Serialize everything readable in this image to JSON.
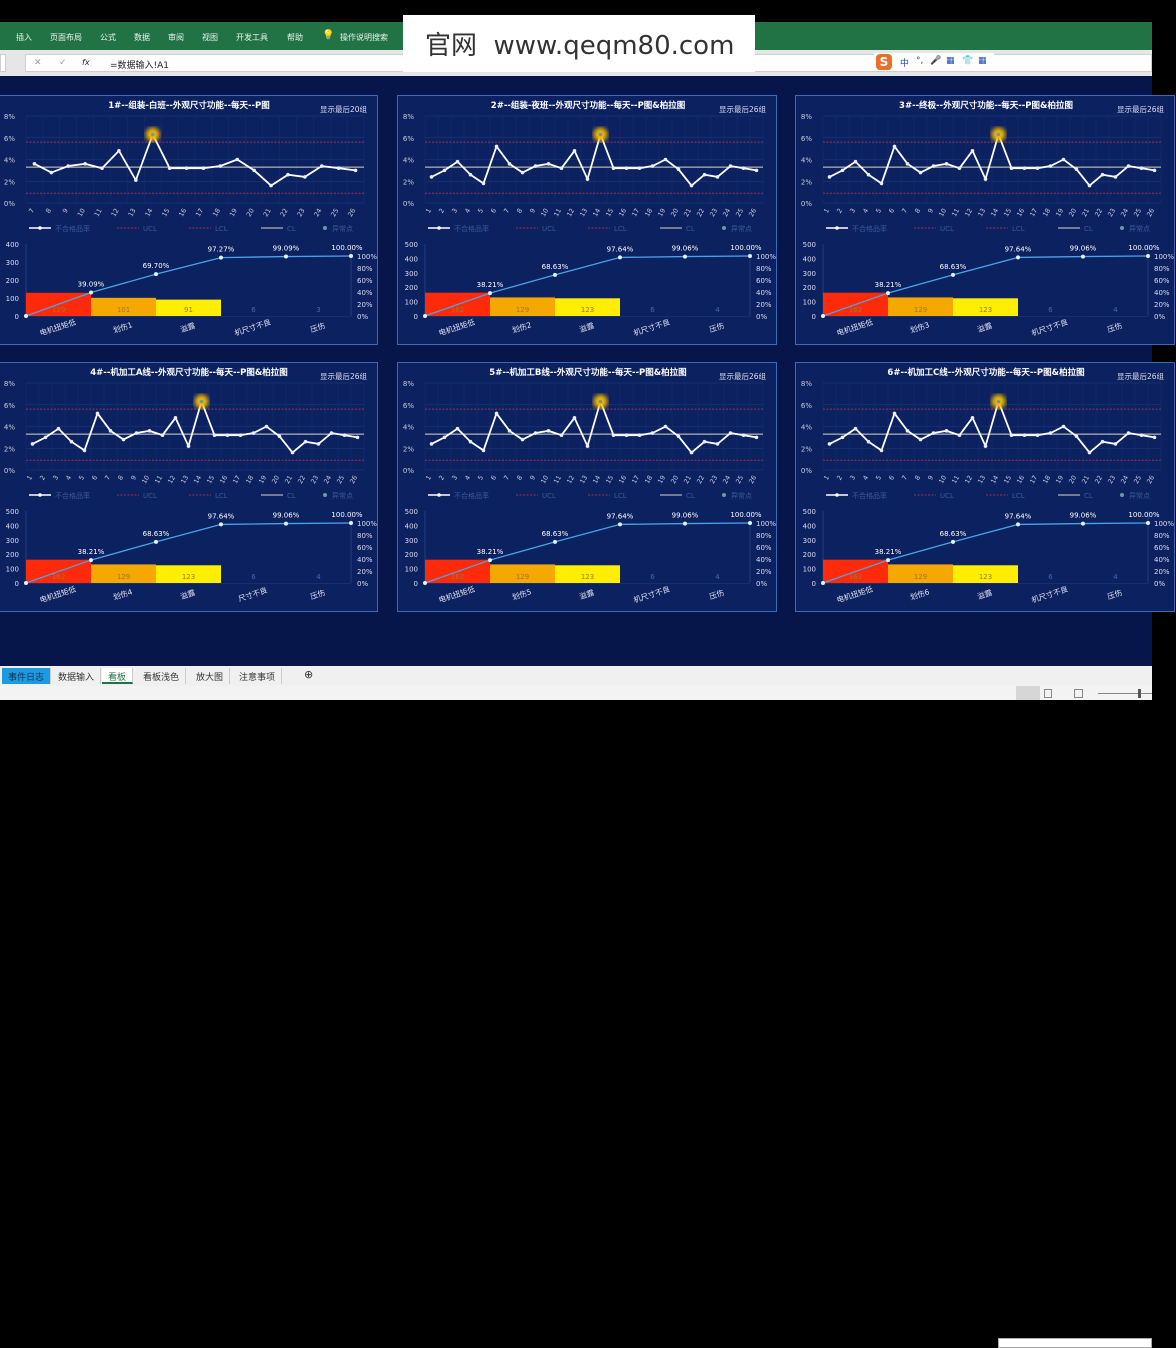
{
  "ribbon": {
    "tabs": [
      "插入",
      "页面布局",
      "公式",
      "数据",
      "审阅",
      "视图",
      "开发工具",
      "帮助"
    ],
    "search": "操作说明搜索"
  },
  "formula_bar": {
    "cancel": "✕",
    "enter": "✓",
    "fx": "fx",
    "formula": "=数据输入!A1"
  },
  "ime": {
    "logo": "S",
    "items": [
      "中",
      "°,",
      "🎤",
      "▦",
      "👕",
      "▦"
    ]
  },
  "watermark": "官网  www.qeqm80.com",
  "colors": {
    "background": "#07164a",
    "panel": "#0c2160",
    "ucl": "#a03050",
    "cl": "#d8d8c8",
    "series": "#ffffff",
    "pareto_line": "#4aa3e8",
    "bars": [
      "#ff2a0a",
      "#f5a800",
      "#ffee00",
      "#0c2160",
      "#0c2160"
    ],
    "abnormal": "#f5b800"
  },
  "legend": [
    "不合格品率",
    "UCL",
    "LCL",
    "CL",
    "异常点"
  ],
  "p_axis": [
    "0%",
    "2%",
    "4%",
    "6%",
    "8%"
  ],
  "cum_axis": [
    "0%",
    "20%",
    "40%",
    "60%",
    "80%",
    "100%"
  ],
  "chart_data": [
    {
      "type": "line+pareto",
      "title": "1#--组装-白班--外观尺寸功能--每天--P图",
      "note": "显示最后20组",
      "x": [
        "7",
        "8",
        "9",
        "10",
        "11",
        "12",
        "13",
        "14",
        "15",
        "16",
        "17",
        "18",
        "19",
        "20",
        "21",
        "22",
        "23",
        "24",
        "25",
        "26"
      ],
      "p": [
        3.6,
        2.8,
        3.4,
        3.6,
        3.2,
        4.8,
        2.1,
        6.3,
        3.2,
        3.2,
        3.2,
        3.4,
        4.0,
        3.0,
        1.6,
        2.6,
        2.4,
        3.4,
        3.2,
        3.0
      ],
      "cl": 3.3,
      "ucl": 5.6,
      "lcl": 0.9,
      "abnormal_index": 7,
      "pareto": {
        "categories": [
          "电机扭矩低",
          "划伤1",
          "溢露",
          "机尺寸不良",
          "压伤"
        ],
        "values": [
          129,
          101,
          91,
          6,
          3
        ],
        "value_labels": [
          "129",
          "101",
          "91",
          "6",
          "3"
        ],
        "cumulative": [
          "39.09%",
          "69.70%",
          "97.27%",
          "99.09%",
          "100.00%"
        ],
        "cum_values": [
          39.09,
          69.7,
          97.27,
          99.09,
          100
        ],
        "ymax": 400,
        "yticks": [
          "0",
          "100",
          "200",
          "300",
          "400"
        ]
      }
    },
    {
      "type": "line+pareto",
      "title": "2#--组装-夜班--外观尺寸功能--每天--P图&柏拉图",
      "note": "显示最后26组",
      "x": [
        "1",
        "2",
        "3",
        "4",
        "5",
        "6",
        "7",
        "8",
        "9",
        "10",
        "11",
        "12",
        "13",
        "14",
        "15",
        "16",
        "17",
        "18",
        "19",
        "20",
        "21",
        "22",
        "23",
        "24",
        "25",
        "26"
      ],
      "p": [
        2.4,
        3.0,
        3.8,
        2.6,
        1.8,
        5.2,
        3.6,
        2.8,
        3.4,
        3.6,
        3.2,
        4.8,
        2.2,
        6.3,
        3.2,
        3.2,
        3.2,
        3.4,
        4.0,
        3.1,
        1.6,
        2.6,
        2.4,
        3.4,
        3.2,
        3.0
      ],
      "cl": 3.3,
      "ucl": 5.6,
      "lcl": 0.9,
      "abnormal_index": 13,
      "pareto": {
        "categories": [
          "电机扭矩低",
          "划伤2",
          "溢露",
          "机尺寸不良",
          "压伤"
        ],
        "values": [
          162,
          129,
          123,
          6,
          4
        ],
        "value_labels": [
          "162",
          "129",
          "123",
          "6",
          "4"
        ],
        "cumulative": [
          "38.21%",
          "68.63%",
          "97.64%",
          "99.06%",
          "100.00%"
        ],
        "cum_values": [
          38.21,
          68.63,
          97.64,
          99.06,
          100
        ],
        "ymax": 500,
        "yticks": [
          "0",
          "100",
          "200",
          "300",
          "400",
          "500"
        ]
      }
    },
    {
      "type": "line+pareto",
      "title": "3#--终极--外观尺寸功能--每天--P图&柏拉图",
      "note": "显示最后26组",
      "x": [
        "1",
        "2",
        "3",
        "4",
        "5",
        "6",
        "7",
        "8",
        "9",
        "10",
        "11",
        "12",
        "13",
        "14",
        "15",
        "16",
        "17",
        "18",
        "19",
        "20",
        "21",
        "22",
        "23",
        "24",
        "25",
        "26"
      ],
      "p": [
        2.4,
        3.0,
        3.8,
        2.6,
        1.8,
        5.2,
        3.6,
        2.8,
        3.4,
        3.6,
        3.2,
        4.8,
        2.2,
        6.3,
        3.2,
        3.2,
        3.2,
        3.4,
        4.0,
        3.1,
        1.6,
        2.6,
        2.4,
        3.4,
        3.2,
        3.0
      ],
      "cl": 3.3,
      "ucl": 5.6,
      "lcl": 0.9,
      "abnormal_index": 13,
      "pareto": {
        "categories": [
          "电机扭矩低",
          "划伤3",
          "溢露",
          "机尺寸不良",
          "压伤"
        ],
        "values": [
          162,
          129,
          123,
          6,
          4
        ],
        "value_labels": [
          "162",
          "129",
          "123",
          "6",
          "4"
        ],
        "cumulative": [
          "38.21%",
          "68.63%",
          "97.64%",
          "99.06%",
          "100.00%"
        ],
        "cum_values": [
          38.21,
          68.63,
          97.64,
          99.06,
          100
        ],
        "ymax": 500,
        "yticks": [
          "0",
          "100",
          "200",
          "300",
          "400",
          "500"
        ]
      }
    },
    {
      "type": "line+pareto",
      "title": "4#--机加工A线--外观尺寸功能--每天--P图&柏拉图",
      "note": "显示最后26组",
      "x": [
        "1",
        "2",
        "3",
        "4",
        "5",
        "6",
        "7",
        "8",
        "9",
        "10",
        "11",
        "12",
        "13",
        "14",
        "15",
        "16",
        "17",
        "18",
        "19",
        "20",
        "21",
        "22",
        "23",
        "24",
        "25",
        "26"
      ],
      "p": [
        2.4,
        3.0,
        3.8,
        2.6,
        1.8,
        5.2,
        3.6,
        2.8,
        3.4,
        3.6,
        3.2,
        4.8,
        2.2,
        6.3,
        3.2,
        3.2,
        3.2,
        3.4,
        4.0,
        3.1,
        1.6,
        2.6,
        2.4,
        3.4,
        3.2,
        3.0
      ],
      "cl": 3.3,
      "ucl": 5.6,
      "lcl": 0.9,
      "abnormal_index": 13,
      "pareto": {
        "categories": [
          "电机扭矩低",
          "划伤4",
          "溢露",
          "尺寸不良",
          "压伤"
        ],
        "values": [
          162,
          129,
          123,
          6,
          4
        ],
        "value_labels": [
          "162",
          "129",
          "123",
          "6",
          "4"
        ],
        "cumulative": [
          "38.21%",
          "68.63%",
          "97.64%",
          "99.06%",
          "100.00%"
        ],
        "cum_values": [
          38.21,
          68.63,
          97.64,
          99.06,
          100
        ],
        "ymax": 500,
        "yticks": [
          "0",
          "100",
          "200",
          "300",
          "400",
          "500"
        ]
      }
    },
    {
      "type": "line+pareto",
      "title": "5#--机加工B线--外观尺寸功能--每天--P图&柏拉图",
      "note": "显示最后26组",
      "x": [
        "1",
        "2",
        "3",
        "4",
        "5",
        "6",
        "7",
        "8",
        "9",
        "10",
        "11",
        "12",
        "13",
        "14",
        "15",
        "16",
        "17",
        "18",
        "19",
        "20",
        "21",
        "22",
        "23",
        "24",
        "25",
        "26"
      ],
      "p": [
        2.4,
        3.0,
        3.8,
        2.6,
        1.8,
        5.2,
        3.6,
        2.8,
        3.4,
        3.6,
        3.2,
        4.8,
        2.2,
        6.3,
        3.2,
        3.2,
        3.2,
        3.4,
        4.0,
        3.1,
        1.6,
        2.6,
        2.4,
        3.4,
        3.2,
        3.0
      ],
      "cl": 3.3,
      "ucl": 5.6,
      "lcl": 0.9,
      "abnormal_index": 13,
      "pareto": {
        "categories": [
          "电机扭矩低",
          "划伤5",
          "溢露",
          "机尺寸不良",
          "压伤"
        ],
        "values": [
          162,
          129,
          123,
          6,
          4
        ],
        "value_labels": [
          "162",
          "129",
          "123",
          "6",
          "4"
        ],
        "cumulative": [
          "38.21%",
          "68.63%",
          "97.64%",
          "99.06%",
          "100.00%"
        ],
        "cum_values": [
          38.21,
          68.63,
          97.64,
          99.06,
          100
        ],
        "ymax": 500,
        "yticks": [
          "0",
          "100",
          "200",
          "300",
          "400",
          "500"
        ]
      }
    },
    {
      "type": "line+pareto",
      "title": "6#--机加工C线--外观尺寸功能--每天--P图&柏拉图",
      "note": "显示最后26组",
      "x": [
        "1",
        "2",
        "3",
        "4",
        "5",
        "6",
        "7",
        "8",
        "9",
        "10",
        "11",
        "12",
        "13",
        "14",
        "15",
        "16",
        "17",
        "18",
        "19",
        "20",
        "21",
        "22",
        "23",
        "24",
        "25",
        "26"
      ],
      "p": [
        2.4,
        3.0,
        3.8,
        2.6,
        1.8,
        5.2,
        3.6,
        2.8,
        3.4,
        3.6,
        3.2,
        4.8,
        2.2,
        6.3,
        3.2,
        3.2,
        3.2,
        3.4,
        4.0,
        3.1,
        1.6,
        2.6,
        2.4,
        3.4,
        3.2,
        3.0
      ],
      "cl": 3.3,
      "ucl": 5.6,
      "lcl": 0.9,
      "abnormal_index": 13,
      "pareto": {
        "categories": [
          "电机扭矩低",
          "划伤6",
          "溢露",
          "机尺寸不良",
          "压伤"
        ],
        "values": [
          162,
          129,
          123,
          6,
          4
        ],
        "value_labels": [
          "162",
          "129",
          "123",
          "6",
          "4"
        ],
        "cumulative": [
          "38.21%",
          "68.63%",
          "97.64%",
          "99.06%",
          "100.00%"
        ],
        "cum_values": [
          38.21,
          68.63,
          97.64,
          99.06,
          100
        ],
        "ymax": 500,
        "yticks": [
          "0",
          "100",
          "200",
          "300",
          "400",
          "500"
        ]
      }
    }
  ],
  "sheet_tabs": [
    {
      "label": "事件日志",
      "active": false,
      "highlight": true
    },
    {
      "label": "数据输入"
    },
    {
      "label": "看板",
      "active": true
    },
    {
      "label": "看板浅色"
    },
    {
      "label": "放大图"
    },
    {
      "label": "注意事项"
    }
  ],
  "add_sheet": "⊕"
}
